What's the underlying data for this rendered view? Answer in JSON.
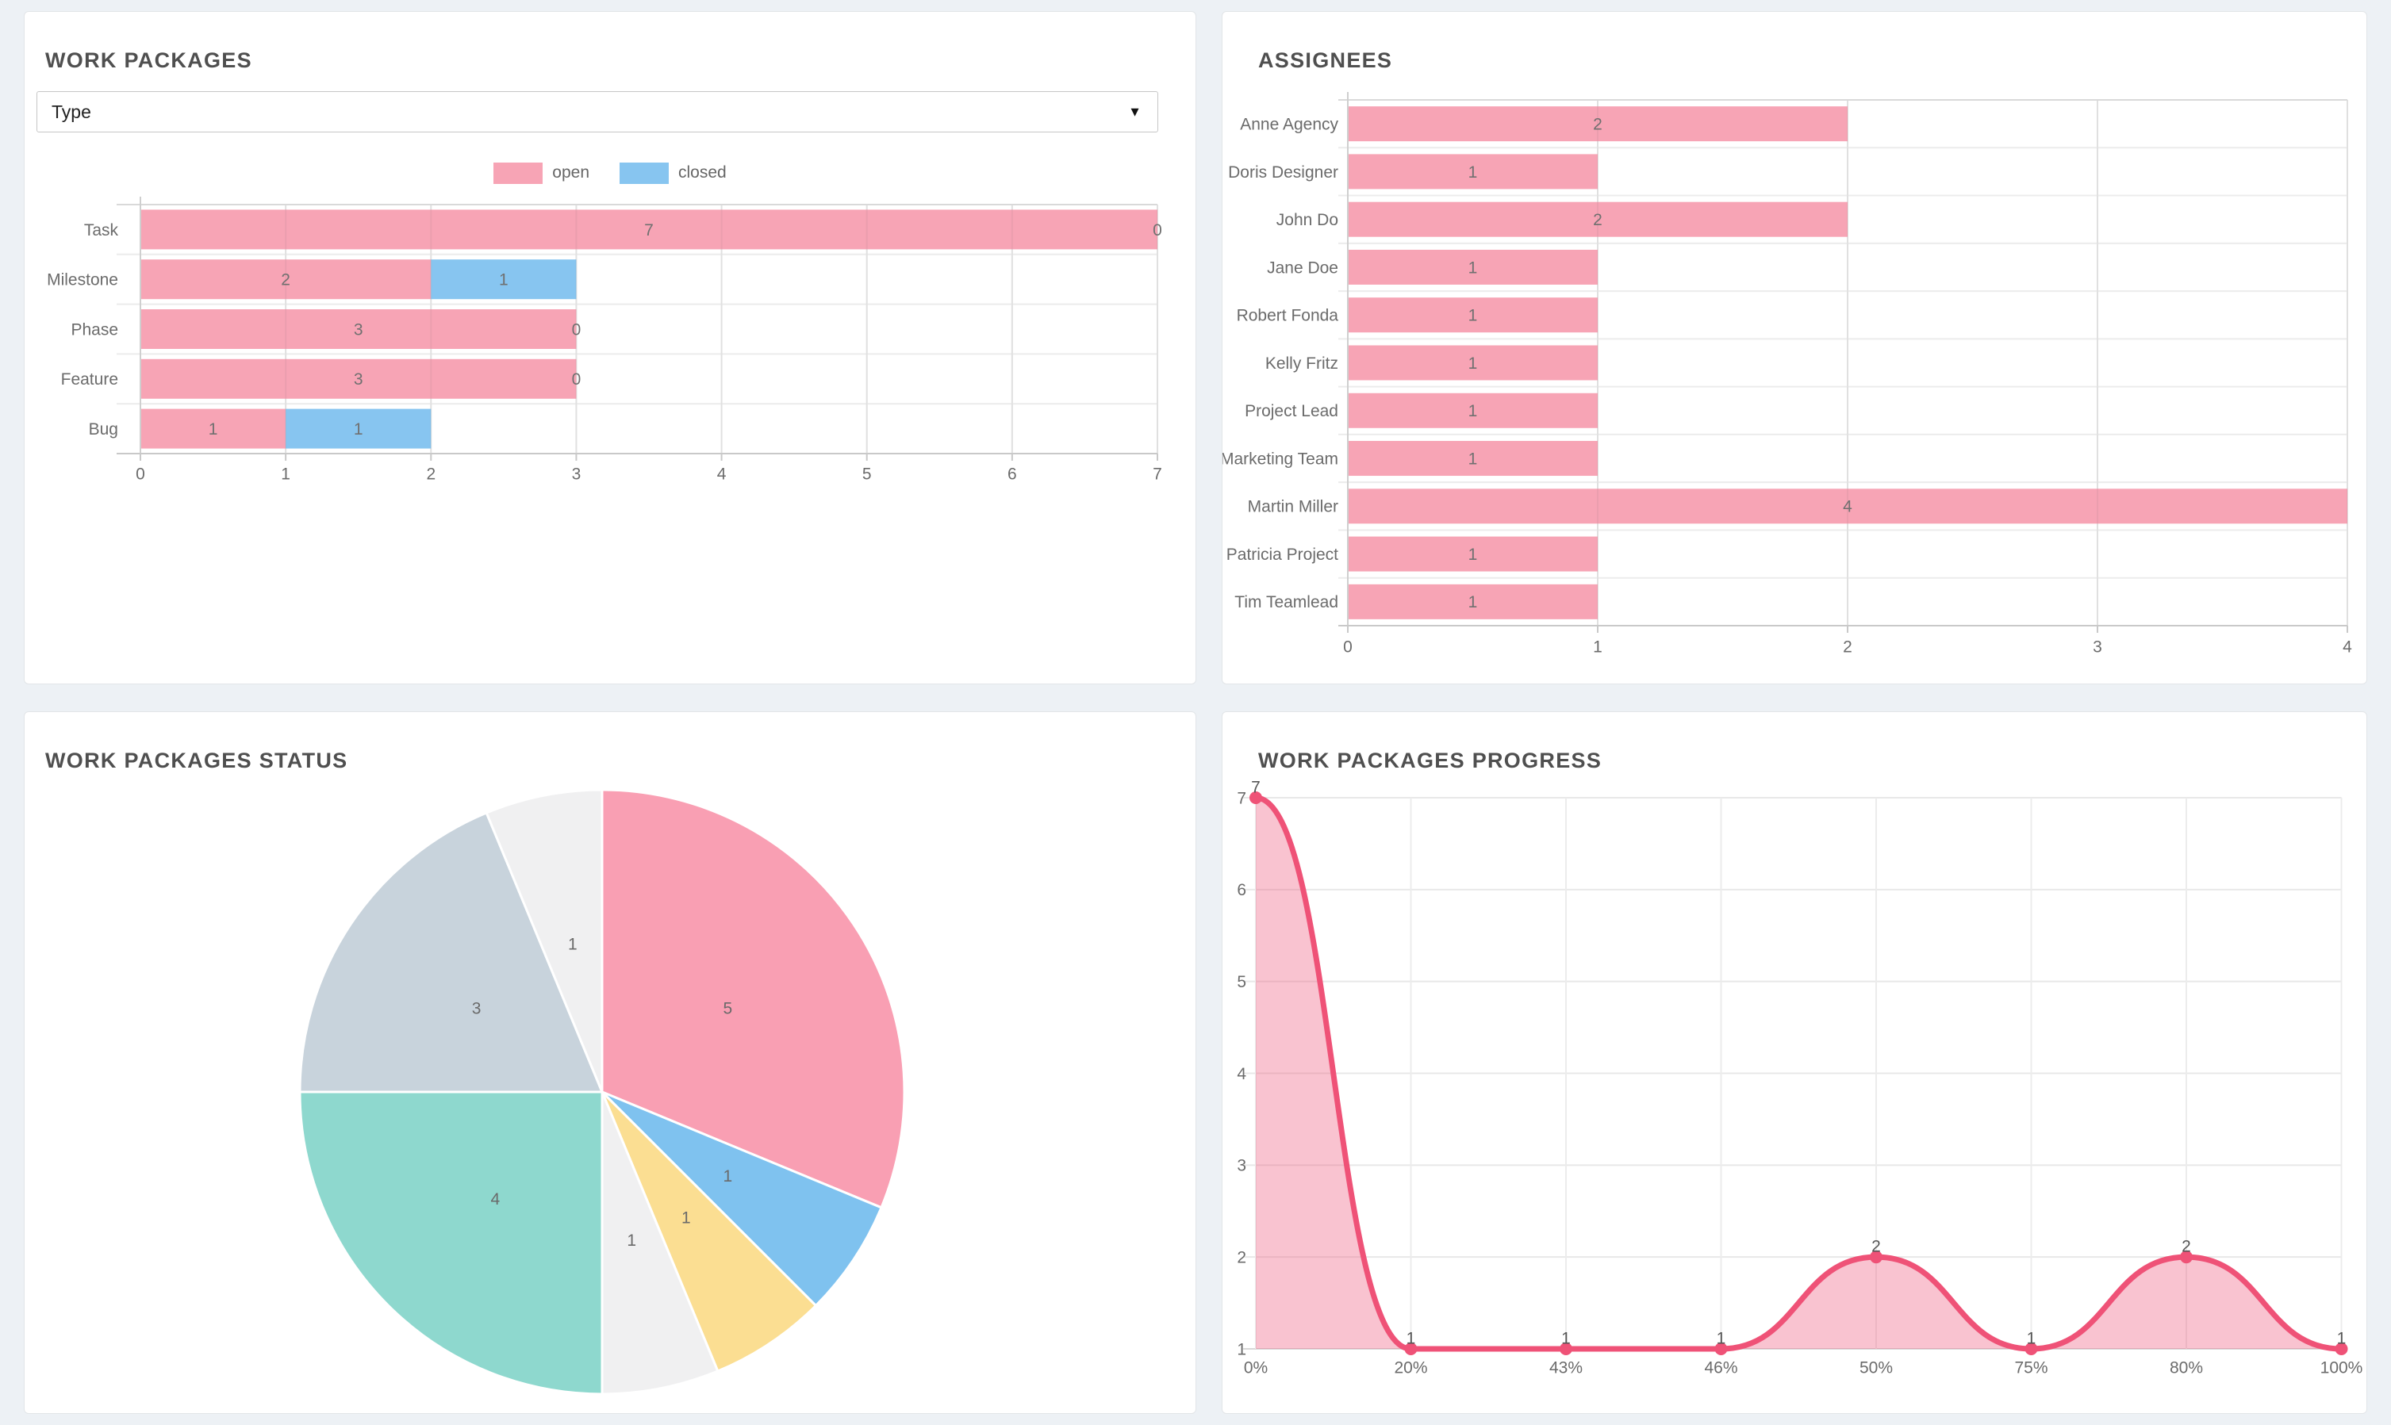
{
  "cards": {
    "work_packages": {
      "title": "WORK PACKAGES",
      "type_dropdown_value": "Type",
      "legend": [
        {
          "label": "open",
          "color": "#f7a4b5"
        },
        {
          "label": "closed",
          "color": "#87c5f0"
        }
      ]
    },
    "assignees": {
      "title": "ASSIGNEES"
    },
    "work_packages_status": {
      "title": "WORK PACKAGES STATUS"
    },
    "work_packages_progress": {
      "title": "WORK PACKAGES PROGRESS"
    }
  },
  "chart_data": [
    {
      "id": "work_packages_by_type",
      "type": "bar",
      "orientation": "horizontal",
      "stacked": true,
      "categories": [
        "Task",
        "Milestone",
        "Phase",
        "Feature",
        "Bug"
      ],
      "series": [
        {
          "name": "open",
          "color": "#f7a4b5",
          "values": [
            7,
            2,
            3,
            3,
            1
          ]
        },
        {
          "name": "closed",
          "color": "#87c5f0",
          "values": [
            0,
            1,
            0,
            0,
            1
          ]
        }
      ],
      "xlim": [
        0,
        7
      ],
      "xticks": [
        "0",
        "1",
        "2",
        "3",
        "4",
        "5",
        "6",
        "7"
      ],
      "grid": true,
      "legend_position": "top"
    },
    {
      "id": "assignees",
      "type": "bar",
      "orientation": "horizontal",
      "categories": [
        "Anne Agency",
        "Doris Designer",
        "John Do",
        "Jane Doe",
        "Robert Fonda",
        "Kelly Fritz",
        "Project Lead",
        "Marketing Team",
        "Martin Miller",
        "Patricia Project",
        "Tim Teamlead"
      ],
      "values": [
        2,
        1,
        2,
        1,
        1,
        1,
        1,
        1,
        4,
        1,
        1
      ],
      "bar_color": "#f7a4b5",
      "xlim": [
        0,
        4
      ],
      "xticks": [
        "0",
        "1",
        "2",
        "3",
        "4"
      ],
      "grid": true
    },
    {
      "id": "work_packages_status",
      "type": "pie",
      "direction": "clockwise",
      "start_angle": "top",
      "total": 16,
      "slices": [
        {
          "value": 5,
          "color": "#f99fb3"
        },
        {
          "value": 1,
          "color": "#7fc2ef"
        },
        {
          "value": 1,
          "color": "#fbde92"
        },
        {
          "value": 1,
          "color": "#f0f0f1"
        },
        {
          "value": 4,
          "color": "#8ed8ce"
        },
        {
          "value": 3,
          "color": "#c8d3dc"
        },
        {
          "value": 1,
          "color": "#f0f0f1"
        }
      ]
    },
    {
      "id": "work_packages_progress",
      "type": "area",
      "x": [
        "0%",
        "20%",
        "43%",
        "46%",
        "50%",
        "75%",
        "80%",
        "100%"
      ],
      "values": [
        7,
        1,
        1,
        1,
        2,
        1,
        2,
        1
      ],
      "point_labels": [
        "7",
        "1",
        "1",
        "1",
        "2",
        "1",
        "2",
        "1"
      ],
      "ylim": [
        1,
        7
      ],
      "yticks": [
        "1",
        "2",
        "3",
        "4",
        "5",
        "6",
        "7"
      ],
      "line_color": "#ef5277",
      "fill_color": "rgba(239,82,119,0.35)",
      "grid": true
    }
  ]
}
